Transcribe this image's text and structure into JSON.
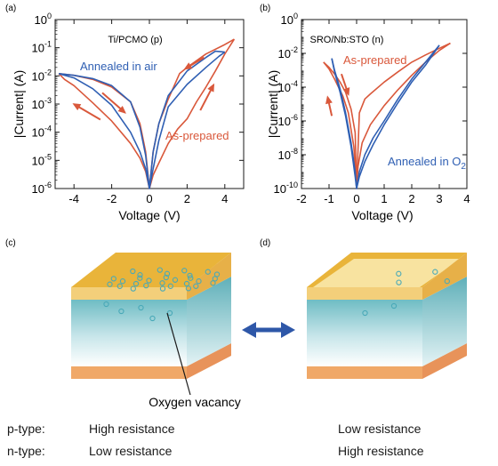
{
  "chart_data": [
    {
      "panel": "(a)",
      "type": "line",
      "title": "Ti/PCMO (p)",
      "xlabel": "Voltage (V)",
      "ylabel": "|Current| (A)",
      "xlim": [
        -5,
        5
      ],
      "ylim": [
        1e-06,
        1
      ],
      "yscale": "log",
      "xticks": [
        -4,
        -2,
        0,
        2,
        4
      ],
      "yticks": [
        1e-06,
        1e-05,
        0.0001,
        0.001,
        0.01,
        0.1,
        1
      ],
      "yticklabels": [
        [
          "10",
          "-6"
        ],
        [
          "10",
          "-5"
        ],
        [
          "10",
          "-4"
        ],
        [
          "10",
          "-3"
        ],
        [
          "10",
          "-2"
        ],
        [
          "10",
          "-1"
        ],
        [
          "10",
          "0"
        ]
      ],
      "grid": false,
      "labels": [
        {
          "text": "Annealed in air",
          "color": "#2f5fb3",
          "sub": ""
        },
        {
          "text": "As-prepared",
          "color": "#d9583b",
          "sub": ""
        }
      ],
      "series": [
        {
          "color": "#d9583b",
          "x": [
            -4.8,
            -4.5,
            -4.0,
            -3.0,
            -2.0,
            -1.0,
            -0.5,
            -0.2,
            0.0,
            0.2,
            0.5,
            1.0,
            1.5,
            2.0,
            2.5,
            3.0,
            3.5,
            4.0,
            4.5
          ],
          "y": [
            0.012,
            0.0075,
            0.0045,
            0.0011,
            0.00025,
            4e-05,
            1.2e-05,
            4e-06,
            1e-06,
            3e-06,
            8e-06,
            4e-05,
            0.00013,
            0.0003,
            0.0012,
            0.004,
            0.015,
            0.06,
            0.2
          ]
        },
        {
          "color": "#d9583b",
          "x": [
            4.5,
            4.0,
            3.0,
            2.0,
            1.6,
            1.0,
            0.5,
            0.2,
            0.0,
            -0.2,
            -0.5,
            -1.0,
            -2.0,
            -3.0,
            -4.0,
            -4.8
          ],
          "y": [
            0.2,
            0.13,
            0.06,
            0.02,
            0.012,
            0.0015,
            0.0002,
            2e-05,
            1e-06,
            2e-05,
            0.0002,
            0.0012,
            0.004,
            0.0075,
            0.0105,
            0.012
          ]
        },
        {
          "color": "#2f5fb3",
          "x": [
            -4.8,
            -4.0,
            -3.0,
            -2.0,
            -1.0,
            -0.5,
            -0.2,
            0.0,
            0.2,
            0.5,
            1.0,
            2.0,
            3.0,
            3.7,
            4.0
          ],
          "y": [
            0.012,
            0.0085,
            0.0035,
            0.0009,
            0.0001,
            2e-05,
            5e-06,
            1e-06,
            5e-06,
            5e-05,
            0.0008,
            0.005,
            0.02,
            0.05,
            0.07
          ]
        },
        {
          "color": "#2f5fb3",
          "x": [
            4.0,
            3.5,
            3.0,
            2.0,
            1.0,
            0.5,
            0.2,
            0.0,
            -0.2,
            -0.5,
            -1.0,
            -2.0,
            -3.0,
            -4.0,
            -4.8
          ],
          "y": [
            0.07,
            0.075,
            0.045,
            0.015,
            0.002,
            0.0002,
            2e-05,
            1e-06,
            1.5e-05,
            0.00015,
            0.0012,
            0.0045,
            0.008,
            0.0105,
            0.012
          ]
        }
      ],
      "arrows": [
        {
          "x": -2.5,
          "y": 0.0025,
          "dx": 1.2,
          "dy": -0.7,
          "color": "#d9583b"
        },
        {
          "x": -2.6,
          "y": 0.00028,
          "dx": -1.4,
          "dy": 0.55,
          "color": "#d9583b"
        },
        {
          "x": 2.7,
          "y": 0.0006,
          "dx": 0.7,
          "dy": 0.9,
          "color": "#d9583b"
        },
        {
          "x": 2.9,
          "y": 0.045,
          "dx": -1.0,
          "dy": -0.4,
          "color": "#d9583b"
        }
      ]
    },
    {
      "panel": "(b)",
      "type": "line",
      "title": "SRO/Nb:STO (n)",
      "xlabel": "Voltage (V)",
      "ylabel": "|Current| (A)",
      "xlim": [
        -2,
        4
      ],
      "ylim": [
        1e-10,
        1
      ],
      "yscale": "log",
      "xticks": [
        -2,
        -1,
        0,
        1,
        2,
        3,
        4
      ],
      "yticks": [
        1e-10,
        1e-08,
        1e-06,
        0.0001,
        0.01,
        1
      ],
      "yticklabels": [
        [
          "10",
          "-10"
        ],
        [
          "10",
          "-8"
        ],
        [
          "10",
          "-6"
        ],
        [
          "10",
          "-4"
        ],
        [
          "10",
          "-2"
        ],
        [
          "10",
          "0"
        ]
      ],
      "grid": false,
      "labels": [
        {
          "text": "As-prepared",
          "color": "#d9583b",
          "sub": ""
        },
        {
          "text": "Annealed in O",
          "color": "#2f5fb3",
          "sub": "2"
        }
      ],
      "series": [
        {
          "color": "#d9583b",
          "x": [
            -1.2,
            -1.0,
            -0.8,
            -0.6,
            -0.4,
            -0.2,
            -0.05,
            0.0,
            0.1,
            0.3,
            0.5,
            1.0,
            1.5,
            2.0,
            2.5,
            3.0,
            3.4
          ],
          "y": [
            0.003,
            0.0015,
            0.0006,
            0.0002,
            5e-05,
            5e-06,
            2e-07,
            1e-10,
            3e-06,
            2e-05,
            4e-05,
            0.0002,
            0.0008,
            0.003,
            0.008,
            0.02,
            0.04
          ]
        },
        {
          "color": "#d9583b",
          "x": [
            3.4,
            3.0,
            2.5,
            2.0,
            1.5,
            1.0,
            0.5,
            0.2,
            0.05,
            0.0,
            -0.1,
            -0.3,
            -0.5,
            -0.8,
            -1.0,
            -1.2
          ],
          "y": [
            0.04,
            0.015,
            0.003,
            0.0005,
            7e-05,
            8e-06,
            6e-07,
            5e-08,
            2e-09,
            1e-10,
            3e-08,
            3e-06,
            3e-05,
            0.0003,
            0.0012,
            0.003
          ]
        },
        {
          "color": "#2f5fb3",
          "x": [
            -0.9,
            -0.8,
            -0.6,
            -0.4,
            -0.2,
            -0.05,
            0.0,
            0.1,
            0.3,
            0.6,
            1.0,
            1.5,
            2.0,
            2.5,
            3.0
          ],
          "y": [
            0.005,
            0.001,
            8e-05,
            3e-06,
            5e-08,
            1e-09,
            1e-10,
            1e-09,
            1e-08,
            1e-07,
            1e-06,
            2e-05,
            0.0003,
            0.003,
            0.03
          ]
        },
        {
          "color": "#2f5fb3",
          "x": [
            3.0,
            2.5,
            2.0,
            1.5,
            1.0,
            0.6,
            0.3,
            0.1,
            0.0,
            -0.05,
            -0.2,
            -0.4,
            -0.6,
            -0.8,
            -0.9
          ],
          "y": [
            0.03,
            0.002,
            0.0002,
            1.2e-05,
            6e-07,
            4e-08,
            4e-09,
            5e-10,
            1e-10,
            5e-10,
            3e-08,
            2e-06,
            5e-05,
            0.0008,
            0.005
          ]
        }
      ],
      "arrows": [
        {
          "x": -0.55,
          "y": 0.0006,
          "dx": 0.25,
          "dy": -1.2,
          "color": "#d9583b"
        },
        {
          "x": -0.9,
          "y": 2e-06,
          "dx": -0.15,
          "dy": 1.1,
          "color": "#d9583b"
        }
      ]
    }
  ],
  "diagram": {
    "panel_c_label": "(c)",
    "panel_d_label": "(d)",
    "vacancy_label": "Oxygen vacancy",
    "colors": {
      "top_electrode": "#f2c55a",
      "bottom_electrode": "#f4c98e",
      "oxide": "#7cc3c8",
      "vacancy": "#49a9b8",
      "arrow": "#2e57a8"
    },
    "left_vacancies": [
      [
        -0.35,
        -0.5
      ],
      [
        -0.2,
        -0.2
      ],
      [
        -0.05,
        -0.6
      ],
      [
        0.1,
        -0.3
      ],
      [
        0.25,
        -0.55
      ],
      [
        0.4,
        -0.15
      ],
      [
        0.55,
        -0.45
      ],
      [
        0.7,
        -0.25
      ],
      [
        -0.45,
        0.1
      ],
      [
        -0.3,
        0.3
      ],
      [
        -0.15,
        0.05
      ],
      [
        0.0,
        0.25
      ],
      [
        0.15,
        0.0
      ],
      [
        0.3,
        0.2
      ],
      [
        0.45,
        0.05
      ],
      [
        0.6,
        0.3
      ],
      [
        0.75,
        0.1
      ],
      [
        -0.4,
        0.55
      ],
      [
        -0.25,
        0.7
      ],
      [
        -0.1,
        0.5
      ],
      [
        0.05,
        0.65
      ],
      [
        0.2,
        0.45
      ],
      [
        0.35,
        0.7
      ],
      [
        0.5,
        0.5
      ],
      [
        0.65,
        0.7
      ],
      [
        0.8,
        0.45
      ],
      [
        -0.05,
        0.9
      ],
      [
        0.3,
        0.9
      ],
      [
        0.6,
        0.88
      ]
    ],
    "left_vacancies_front": [
      [
        0.15,
        0.1
      ],
      [
        0.28,
        0.3
      ],
      [
        0.45,
        0.2
      ],
      [
        0.55,
        0.5
      ],
      [
        0.7,
        0.35
      ]
    ],
    "right_vacancies": [
      [
        0.05,
        -0.3
      ],
      [
        0.45,
        -0.45
      ],
      [
        0.75,
        0.3
      ],
      [
        0.2,
        0.4
      ]
    ],
    "right_vacancies_front": [
      [
        0.35,
        0.35
      ],
      [
        0.6,
        0.15
      ]
    ]
  },
  "comparison": {
    "rows": [
      {
        "type": "p-type:",
        "left": "High resistance",
        "right": "Low resistance"
      },
      {
        "type": "n-type:",
        "left": "Low resistance",
        "right": "High resistance"
      }
    ]
  }
}
